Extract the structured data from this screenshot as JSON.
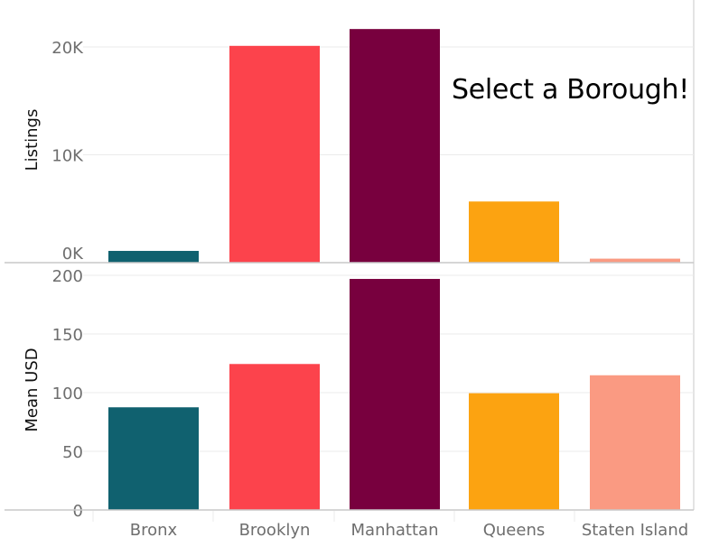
{
  "prompt_text": "Select a Borough!",
  "colors": {
    "Bronx": "#10616f",
    "Brooklyn": "#fc434c",
    "Manhattan": "#78003e",
    "Queens": "#fca311",
    "Staten Island": "#fa9a82",
    "grid": "#ebebeb",
    "axis": "#c8c8c8",
    "tick_text": "#6e6e6e",
    "label_text": "#111111"
  },
  "chart_data": [
    {
      "type": "bar",
      "panel": "top",
      "categories": [
        "Bronx",
        "Brooklyn",
        "Manhattan",
        "Queens",
        "Staten Island"
      ],
      "values": [
        1090,
        20100,
        21660,
        5670,
        370
      ],
      "ylabel": "Listings",
      "ylim": [
        0,
        23000
      ],
      "yticks": [
        0,
        10000,
        20000
      ],
      "ytick_labels": [
        "0K",
        "10K",
        "20K"
      ],
      "grid": true
    },
    {
      "type": "bar",
      "panel": "bottom",
      "categories": [
        "Bronx",
        "Brooklyn",
        "Manhattan",
        "Queens",
        "Staten Island"
      ],
      "values": [
        87.5,
        124.4,
        196.9,
        99.5,
        114.8
      ],
      "ylabel": "Mean USD",
      "ylim": [
        0,
        200
      ],
      "yticks": [
        0,
        50,
        100,
        150,
        200
      ],
      "ytick_labels": [
        "0",
        "50",
        "100",
        "150",
        "200"
      ],
      "grid": true
    }
  ]
}
